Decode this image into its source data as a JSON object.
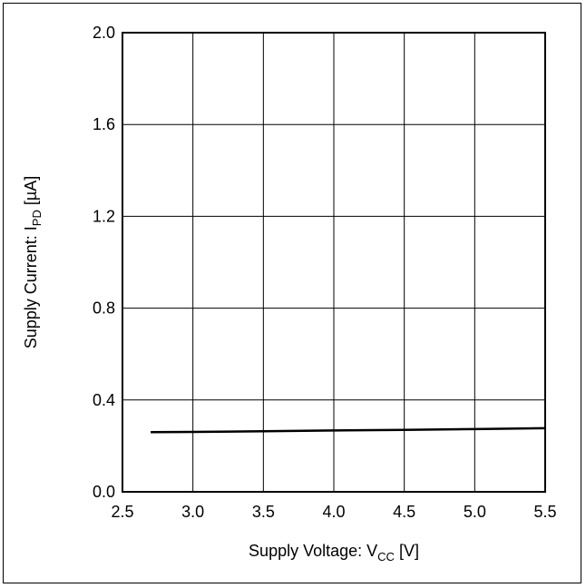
{
  "chart_data": {
    "type": "line",
    "xlabel": {
      "prefix": "Supply Voltage: V",
      "sub": "CC",
      "suffix": " [V]"
    },
    "ylabel": {
      "prefix": "Supply Current: I",
      "sub": "PD",
      "suffix": " [µA]"
    },
    "xlim": [
      2.5,
      5.5
    ],
    "ylim": [
      0.0,
      2.0
    ],
    "x_ticks": [
      "2.5",
      "3.0",
      "3.5",
      "4.0",
      "4.5",
      "5.0",
      "5.5"
    ],
    "y_ticks": [
      "0.0",
      "0.4",
      "0.8",
      "1.2",
      "1.6",
      "2.0"
    ],
    "grid": true,
    "series": [
      {
        "color": "#000000",
        "x": [
          2.7,
          3.0,
          3.5,
          4.0,
          4.5,
          5.0,
          5.5
        ],
        "y": [
          0.26,
          0.261,
          0.264,
          0.267,
          0.27,
          0.273,
          0.277
        ]
      }
    ]
  }
}
